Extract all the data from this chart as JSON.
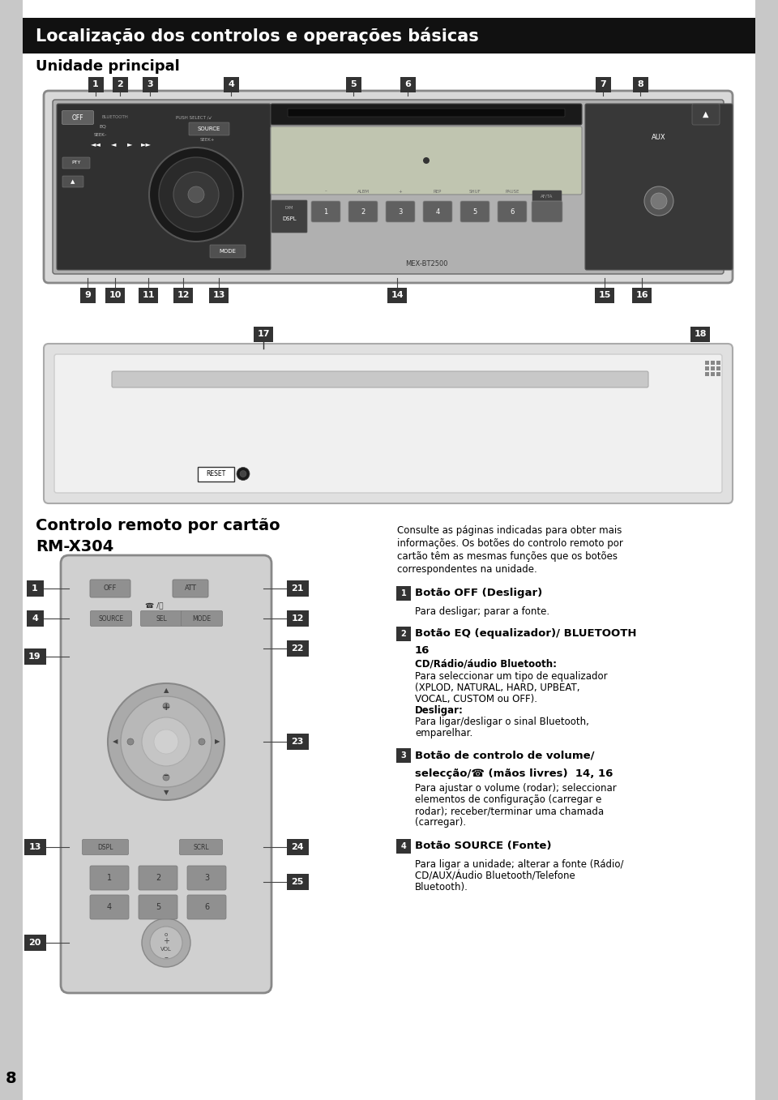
{
  "bg_color": "#c8c8c8",
  "page_bg": "#ffffff",
  "header_bg": "#111111",
  "header_text": "Localização dos controlos e operações básicas",
  "header_text_color": "#ffffff",
  "section1_title": "Unidade principal",
  "section2_line1": "Controlo remoto por cartão",
  "section2_line2": "RM-X304",
  "page_number": "8",
  "right_col_intro": "Consulte as páginas indicadas para obter mais\ninformações. Os botões do controlo remoto por\ncartão têm as mesmas funções que os botões\ncorrespondentes na unidade.",
  "item1_bold": "Botão OFF (Desligar)",
  "item1_normal": "Para desligar; parar a fonte.",
  "item2_bold1": "Botão EQ (equalizador)/ BLUETOOTH",
  "item2_bold2": "16",
  "item2_subbold": "CD/Rádio/áudio Bluetooth:",
  "item2_n1": "Para seleccionar um tipo de equalizador",
  "item2_n2": "(XPLOD, NATURAL, HARD, UPBEAT,",
  "item2_n3": "VOCAL, CUSTOM ou OFF).",
  "item2_bold3": "Desligar:",
  "item2_n4": "Para ligar/desligar o sinal Bluetooth,",
  "item2_n5": "emparelhar.",
  "item3_bold1": "Botão de controlo de volume/",
  "item3_bold2": "selecção/☎ (mãos livres)  14, 16",
  "item3_n1": "Para ajustar o volume (rodar); seleccionar",
  "item3_n2": "elementos de configuração (carregar e",
  "item3_n3": "rodar); receber/terminar uma chamada",
  "item3_n4": "(carregar).",
  "item4_bold": "Botão SOURCE (Fonte)",
  "item4_n1": "Para ligar a unidade; alterar a fonte (Rádio/",
  "item4_n2": "CD/AUX/Áudio Bluetooth/Telefone",
  "item4_n3": "Bluetooth)."
}
